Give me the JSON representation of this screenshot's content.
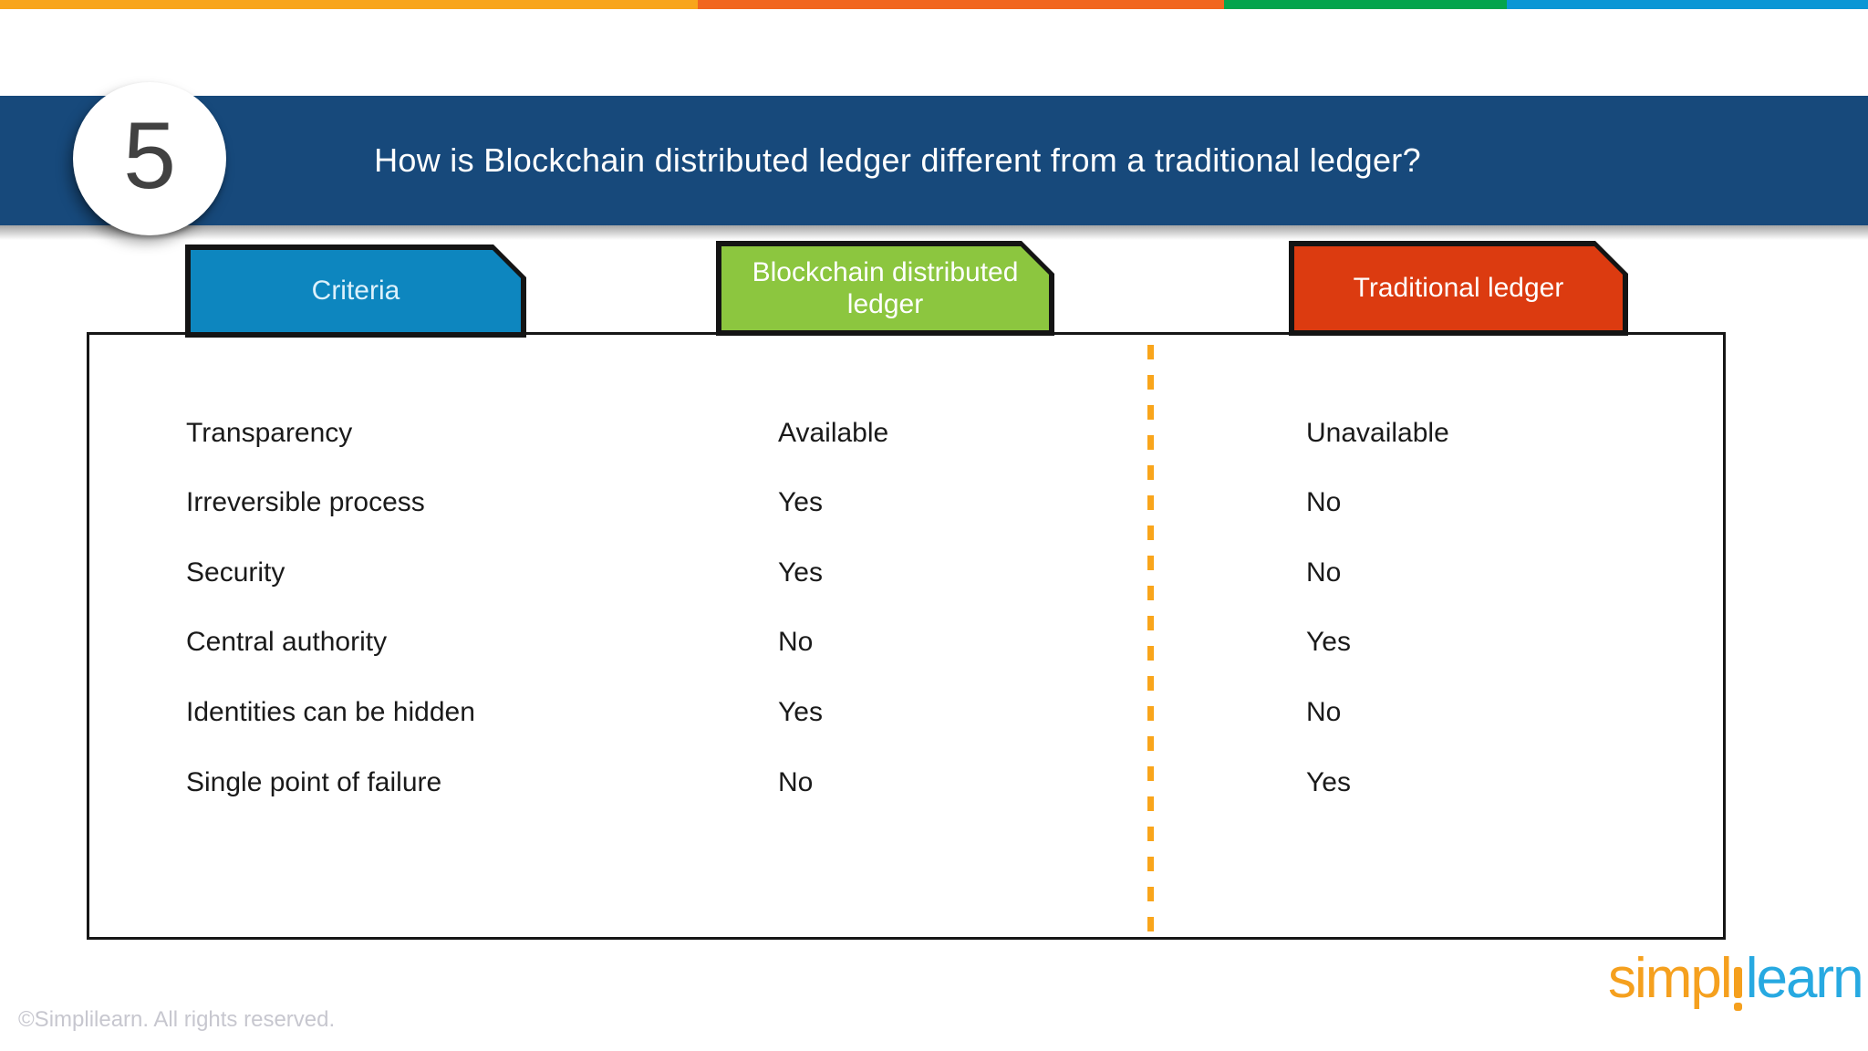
{
  "top_bar": {
    "segment_colors": [
      "#F8A51B",
      "#F1661F",
      "#04A44C",
      "#0A96D5"
    ]
  },
  "header": {
    "slide_number": "5",
    "title": "How is Blockchain distributed ledger different from a traditional ledger?",
    "band_color": "#17497B"
  },
  "tabs": [
    {
      "label": "Criteria",
      "color": "#0D86BF"
    },
    {
      "label": "Blockchain distributed ledger",
      "color": "#8CC63F"
    },
    {
      "label": "Traditional ledger",
      "color": "#DC3B10"
    }
  ],
  "table": {
    "divider_color": "#F9A51B",
    "rows": [
      {
        "criteria": "Transparency",
        "blockchain": "Available",
        "traditional": "Unavailable"
      },
      {
        "criteria": "Irreversible process",
        "blockchain": "Yes",
        "traditional": "No"
      },
      {
        "criteria": "Security",
        "blockchain": "Yes",
        "traditional": "No"
      },
      {
        "criteria": "Central authority",
        "blockchain": "No",
        "traditional": "Yes"
      },
      {
        "criteria": "Identities can be hidden",
        "blockchain": "Yes",
        "traditional": "No"
      },
      {
        "criteria": "Single point of failure",
        "blockchain": "No",
        "traditional": "Yes"
      }
    ]
  },
  "footer": {
    "copyright": "©Simplilearn. All rights reserved."
  },
  "logo": {
    "part1": "simpl",
    "part2": "learn",
    "orange": "#F5A01E",
    "blue": "#27A9E1"
  }
}
